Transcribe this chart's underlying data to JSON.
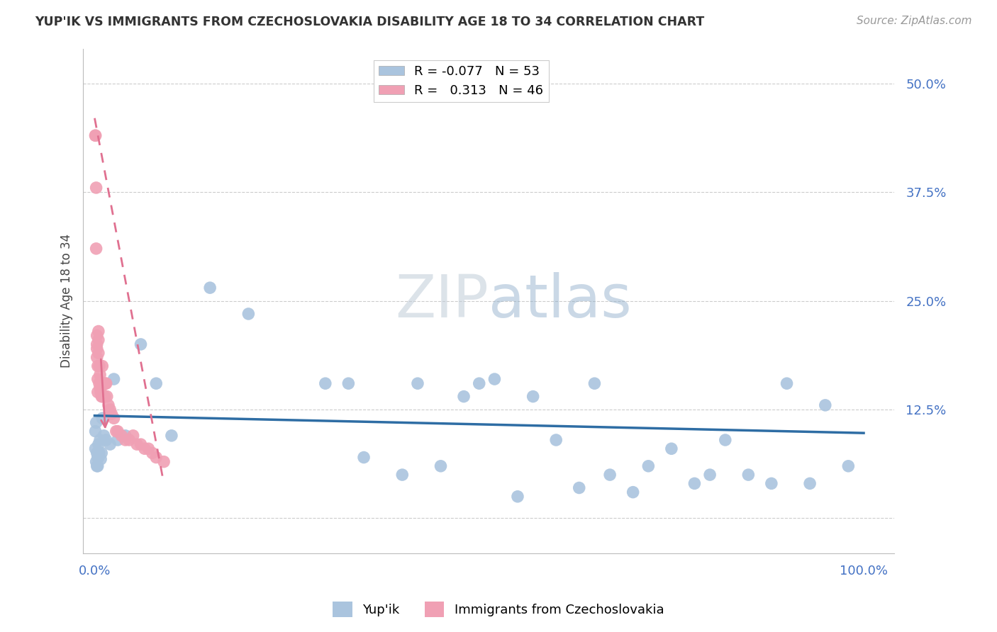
{
  "title": "YUP'IK VS IMMIGRANTS FROM CZECHOSLOVAKIA DISABILITY AGE 18 TO 34 CORRELATION CHART",
  "source": "Source: ZipAtlas.com",
  "ylabel": "Disability Age 18 to 34",
  "blue_color": "#aac4de",
  "pink_color": "#f0a0b4",
  "line_blue_color": "#2e6da4",
  "line_pink_color": "#e07090",
  "background_color": "#ffffff",
  "watermark_color": "#d0dce8",
  "blue_r": -0.077,
  "blue_n": 53,
  "pink_r": 0.313,
  "pink_n": 46,
  "yticks": [
    0.0,
    0.125,
    0.25,
    0.375,
    0.5
  ],
  "ytick_labels": [
    "",
    "12.5%",
    "25.0%",
    "37.5%",
    "50.0%"
  ],
  "xticks": [
    0.0,
    0.5,
    1.0
  ],
  "xtick_labels": [
    "0.0%",
    "",
    "100.0%"
  ],
  "blue_x": [
    0.001,
    0.001,
    0.002,
    0.002,
    0.003,
    0.003,
    0.004,
    0.004,
    0.005,
    0.005,
    0.006,
    0.007,
    0.008,
    0.009,
    0.01,
    0.012,
    0.015,
    0.02,
    0.025,
    0.03,
    0.04,
    0.06,
    0.08,
    0.1,
    0.15,
    0.2,
    0.3,
    0.33,
    0.35,
    0.4,
    0.42,
    0.45,
    0.48,
    0.5,
    0.52,
    0.55,
    0.57,
    0.6,
    0.63,
    0.65,
    0.67,
    0.7,
    0.72,
    0.75,
    0.78,
    0.8,
    0.82,
    0.85,
    0.88,
    0.9,
    0.93,
    0.95,
    0.98
  ],
  "blue_y": [
    0.1,
    0.08,
    0.11,
    0.065,
    0.075,
    0.06,
    0.07,
    0.06,
    0.085,
    0.07,
    0.075,
    0.09,
    0.068,
    0.075,
    0.115,
    0.095,
    0.09,
    0.085,
    0.16,
    0.09,
    0.095,
    0.2,
    0.155,
    0.095,
    0.265,
    0.235,
    0.155,
    0.155,
    0.07,
    0.05,
    0.155,
    0.06,
    0.14,
    0.155,
    0.16,
    0.025,
    0.14,
    0.09,
    0.035,
    0.155,
    0.05,
    0.03,
    0.06,
    0.08,
    0.04,
    0.05,
    0.09,
    0.05,
    0.04,
    0.155,
    0.04,
    0.13,
    0.06
  ],
  "pink_x": [
    0.001,
    0.001,
    0.002,
    0.002,
    0.003,
    0.003,
    0.003,
    0.003,
    0.004,
    0.004,
    0.004,
    0.005,
    0.005,
    0.005,
    0.006,
    0.006,
    0.007,
    0.007,
    0.008,
    0.008,
    0.009,
    0.01,
    0.01,
    0.011,
    0.012,
    0.013,
    0.014,
    0.015,
    0.016,
    0.018,
    0.02,
    0.022,
    0.025,
    0.028,
    0.03,
    0.035,
    0.04,
    0.045,
    0.05,
    0.055,
    0.06,
    0.065,
    0.07,
    0.075,
    0.08,
    0.09
  ],
  "pink_y": [
    0.44,
    0.44,
    0.38,
    0.31,
    0.21,
    0.2,
    0.195,
    0.185,
    0.175,
    0.16,
    0.145,
    0.215,
    0.205,
    0.19,
    0.175,
    0.155,
    0.165,
    0.15,
    0.15,
    0.145,
    0.14,
    0.175,
    0.14,
    0.14,
    0.155,
    0.14,
    0.155,
    0.155,
    0.14,
    0.13,
    0.125,
    0.12,
    0.115,
    0.1,
    0.1,
    0.095,
    0.09,
    0.09,
    0.095,
    0.085,
    0.085,
    0.08,
    0.08,
    0.075,
    0.07,
    0.065
  ],
  "blue_line_x": [
    0.0,
    1.0
  ],
  "blue_line_y": [
    0.118,
    0.098
  ],
  "pink_line_x": [
    0.0,
    0.09
  ],
  "pink_line_y": [
    0.46,
    0.04
  ]
}
